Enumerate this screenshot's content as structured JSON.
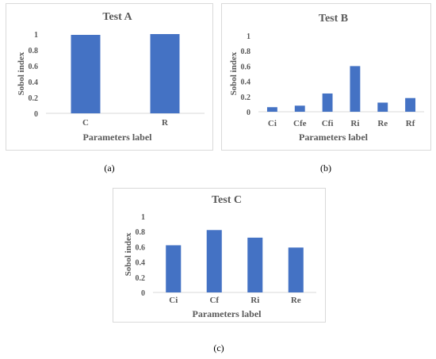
{
  "colors": {
    "bar": "#4472c4",
    "text": "#595959",
    "axis": "#d9d9d9"
  },
  "captions": {
    "a": "(a)",
    "b": "(b)",
    "c": "(c)"
  },
  "chart_data": [
    {
      "type": "bar",
      "title": "Test A",
      "xlabel": "Parameters label",
      "ylabel": "Sobol index",
      "ylim": [
        0,
        1
      ],
      "yticks": [
        "0",
        "0.2",
        "0.4",
        "0.6",
        "0.8",
        "1"
      ],
      "categories": [
        "C",
        "R"
      ],
      "values": [
        0.99,
        1.0
      ],
      "grid": false
    },
    {
      "type": "bar",
      "title": "Test B",
      "xlabel": "Parameters label",
      "ylabel": "Sobol index",
      "ylim": [
        0,
        1
      ],
      "yticks": [
        "0",
        "0.2",
        "0.4",
        "0.6",
        "0.8",
        "1"
      ],
      "categories": [
        "Ci",
        "Cfe",
        "Cfi",
        "Ri",
        "Re",
        "Rf"
      ],
      "values": [
        0.06,
        0.08,
        0.24,
        0.6,
        0.12,
        0.18
      ],
      "grid": false
    },
    {
      "type": "bar",
      "title": "Test C",
      "xlabel": "Parameters label",
      "ylabel": "Sobol index",
      "ylim": [
        0,
        1
      ],
      "yticks": [
        "0",
        "0.2",
        "0.4",
        "0.6",
        "0.8",
        "1"
      ],
      "categories": [
        "Ci",
        "Cf",
        "Ri",
        "Re"
      ],
      "values": [
        0.62,
        0.82,
        0.72,
        0.59
      ],
      "grid": false
    }
  ]
}
